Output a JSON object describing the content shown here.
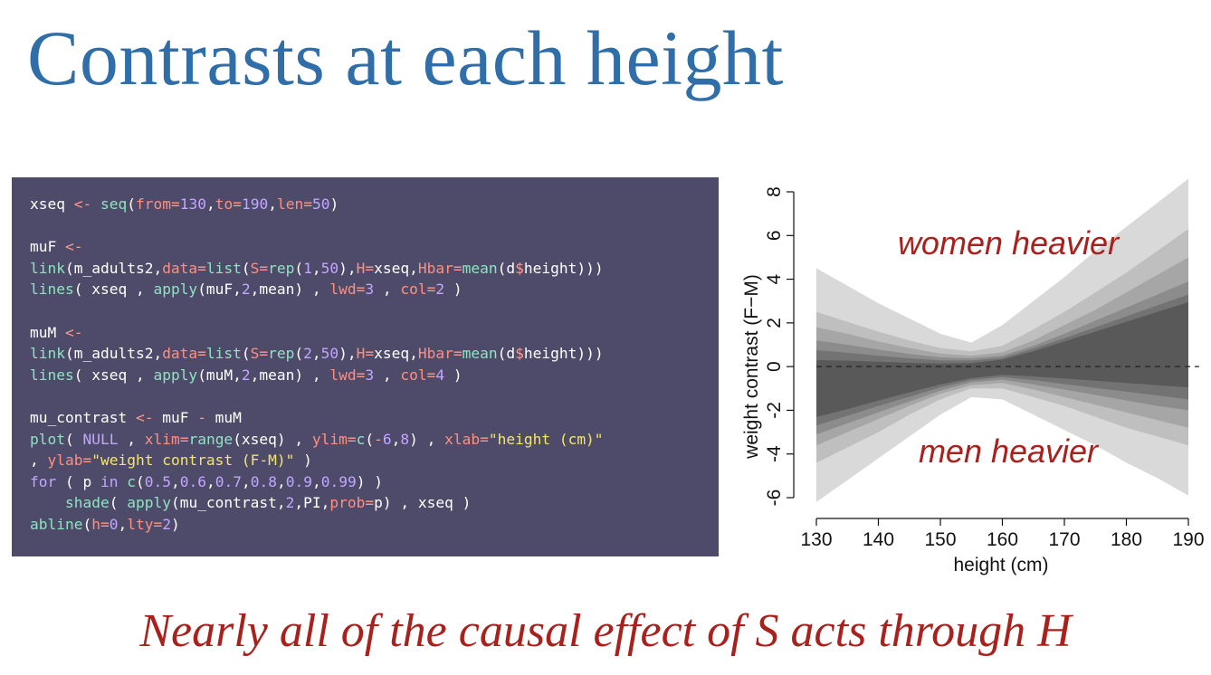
{
  "slide": {
    "title": "Contrasts at each height",
    "caption": "Nearly all of the causal effect of S acts through H"
  },
  "code": {
    "lines": [
      [
        {
          "t": "xseq "
        },
        {
          "t": "<-",
          "k": "op"
        },
        {
          "t": " "
        },
        {
          "t": "seq",
          "k": "fn"
        },
        {
          "t": "("
        },
        {
          "t": "from",
          "k": "arg"
        },
        {
          "t": "=",
          "k": "op"
        },
        {
          "t": "130",
          "k": "num"
        },
        {
          "t": ","
        },
        {
          "t": "to",
          "k": "arg"
        },
        {
          "t": "=",
          "k": "op"
        },
        {
          "t": "190",
          "k": "num"
        },
        {
          "t": ","
        },
        {
          "t": "len",
          "k": "arg"
        },
        {
          "t": "=",
          "k": "op"
        },
        {
          "t": "50",
          "k": "num"
        },
        {
          "t": ")"
        }
      ],
      [],
      [
        {
          "t": "muF "
        },
        {
          "t": "<-",
          "k": "op"
        }
      ],
      [
        {
          "t": "link",
          "k": "fn"
        },
        {
          "t": "(m_adults2,"
        },
        {
          "t": "data",
          "k": "arg"
        },
        {
          "t": "=",
          "k": "op"
        },
        {
          "t": "list",
          "k": "fn"
        },
        {
          "t": "("
        },
        {
          "t": "S",
          "k": "arg"
        },
        {
          "t": "=",
          "k": "op"
        },
        {
          "t": "rep",
          "k": "fn"
        },
        {
          "t": "("
        },
        {
          "t": "1",
          "k": "num"
        },
        {
          "t": ","
        },
        {
          "t": "50",
          "k": "num"
        },
        {
          "t": "),"
        },
        {
          "t": "H",
          "k": "arg"
        },
        {
          "t": "=",
          "k": "op"
        },
        {
          "t": "xseq,"
        },
        {
          "t": "Hbar",
          "k": "arg"
        },
        {
          "t": "=",
          "k": "op"
        },
        {
          "t": "mean",
          "k": "fn"
        },
        {
          "t": "(d"
        },
        {
          "t": "$",
          "k": "op"
        },
        {
          "t": "height)))"
        }
      ],
      [
        {
          "t": "lines",
          "k": "fn"
        },
        {
          "t": "( xseq , "
        },
        {
          "t": "apply",
          "k": "fn"
        },
        {
          "t": "(muF,"
        },
        {
          "t": "2",
          "k": "num"
        },
        {
          "t": ",mean) , "
        },
        {
          "t": "lwd",
          "k": "arg"
        },
        {
          "t": "=",
          "k": "op"
        },
        {
          "t": "3",
          "k": "num"
        },
        {
          "t": " , "
        },
        {
          "t": "col",
          "k": "arg"
        },
        {
          "t": "=",
          "k": "op"
        },
        {
          "t": "2",
          "k": "num"
        },
        {
          "t": " )"
        }
      ],
      [],
      [
        {
          "t": "muM "
        },
        {
          "t": "<-",
          "k": "op"
        }
      ],
      [
        {
          "t": "link",
          "k": "fn"
        },
        {
          "t": "(m_adults2,"
        },
        {
          "t": "data",
          "k": "arg"
        },
        {
          "t": "=",
          "k": "op"
        },
        {
          "t": "list",
          "k": "fn"
        },
        {
          "t": "("
        },
        {
          "t": "S",
          "k": "arg"
        },
        {
          "t": "=",
          "k": "op"
        },
        {
          "t": "rep",
          "k": "fn"
        },
        {
          "t": "("
        },
        {
          "t": "2",
          "k": "num"
        },
        {
          "t": ","
        },
        {
          "t": "50",
          "k": "num"
        },
        {
          "t": "),"
        },
        {
          "t": "H",
          "k": "arg"
        },
        {
          "t": "=",
          "k": "op"
        },
        {
          "t": "xseq,"
        },
        {
          "t": "Hbar",
          "k": "arg"
        },
        {
          "t": "=",
          "k": "op"
        },
        {
          "t": "mean",
          "k": "fn"
        },
        {
          "t": "(d"
        },
        {
          "t": "$",
          "k": "op"
        },
        {
          "t": "height)))"
        }
      ],
      [
        {
          "t": "lines",
          "k": "fn"
        },
        {
          "t": "( xseq , "
        },
        {
          "t": "apply",
          "k": "fn"
        },
        {
          "t": "(muM,"
        },
        {
          "t": "2",
          "k": "num"
        },
        {
          "t": ",mean) , "
        },
        {
          "t": "lwd",
          "k": "arg"
        },
        {
          "t": "=",
          "k": "op"
        },
        {
          "t": "3",
          "k": "num"
        },
        {
          "t": " , "
        },
        {
          "t": "col",
          "k": "arg"
        },
        {
          "t": "=",
          "k": "op"
        },
        {
          "t": "4",
          "k": "num"
        },
        {
          "t": " )"
        }
      ],
      [],
      [
        {
          "t": "mu_contrast "
        },
        {
          "t": "<-",
          "k": "op"
        },
        {
          "t": " muF "
        },
        {
          "t": "-",
          "k": "op"
        },
        {
          "t": " muM"
        }
      ],
      [
        {
          "t": "plot",
          "k": "fn"
        },
        {
          "t": "( "
        },
        {
          "t": "NULL",
          "k": "kw"
        },
        {
          "t": " , "
        },
        {
          "t": "xlim",
          "k": "arg"
        },
        {
          "t": "=",
          "k": "op"
        },
        {
          "t": "range",
          "k": "fn"
        },
        {
          "t": "(xseq) , "
        },
        {
          "t": "ylim",
          "k": "arg"
        },
        {
          "t": "=",
          "k": "op"
        },
        {
          "t": "c",
          "k": "fn"
        },
        {
          "t": "("
        },
        {
          "t": "-",
          "k": "op"
        },
        {
          "t": "6",
          "k": "num"
        },
        {
          "t": ","
        },
        {
          "t": "8",
          "k": "num"
        },
        {
          "t": ") , "
        },
        {
          "t": "xlab",
          "k": "arg"
        },
        {
          "t": "=",
          "k": "op"
        },
        {
          "t": "\"height (cm)\"",
          "k": "str"
        }
      ],
      [
        {
          "t": ", "
        },
        {
          "t": "ylab",
          "k": "arg"
        },
        {
          "t": "=",
          "k": "op"
        },
        {
          "t": "\"weight contrast (F-M)\"",
          "k": "str"
        },
        {
          "t": " )"
        }
      ],
      [
        {
          "t": "for",
          "k": "kw"
        },
        {
          "t": " ( p "
        },
        {
          "t": "in",
          "k": "kw"
        },
        {
          "t": " "
        },
        {
          "t": "c",
          "k": "fn"
        },
        {
          "t": "("
        },
        {
          "t": "0.5",
          "k": "num"
        },
        {
          "t": ","
        },
        {
          "t": "0.6",
          "k": "num"
        },
        {
          "t": ","
        },
        {
          "t": "0.7",
          "k": "num"
        },
        {
          "t": ","
        },
        {
          "t": "0.8",
          "k": "num"
        },
        {
          "t": ","
        },
        {
          "t": "0.9",
          "k": "num"
        },
        {
          "t": ","
        },
        {
          "t": "0.99",
          "k": "num"
        },
        {
          "t": ") )"
        }
      ],
      [
        {
          "t": "    "
        },
        {
          "t": "shade",
          "k": "fn"
        },
        {
          "t": "( "
        },
        {
          "t": "apply",
          "k": "fn"
        },
        {
          "t": "(mu_contrast,"
        },
        {
          "t": "2",
          "k": "num"
        },
        {
          "t": ",PI,"
        },
        {
          "t": "prob",
          "k": "arg"
        },
        {
          "t": "=",
          "k": "op"
        },
        {
          "t": "p) , xseq )"
        }
      ],
      [
        {
          "t": "abline",
          "k": "fn"
        },
        {
          "t": "("
        },
        {
          "t": "h",
          "k": "arg"
        },
        {
          "t": "=",
          "k": "op"
        },
        {
          "t": "0",
          "k": "num"
        },
        {
          "t": ","
        },
        {
          "t": "lty",
          "k": "arg"
        },
        {
          "t": "=",
          "k": "op"
        },
        {
          "t": "2",
          "k": "num"
        },
        {
          "t": ")"
        }
      ]
    ]
  },
  "chart_data": {
    "type": "area",
    "title": "",
    "xlabel": "height (cm)",
    "ylabel": "weight contrast (F−M)",
    "xlim": [
      130,
      190
    ],
    "ylim": [
      -6,
      8
    ],
    "xticks": [
      "130",
      "140",
      "150",
      "160",
      "170",
      "180",
      "190"
    ],
    "yticks": [
      "-6",
      "-4",
      "-2",
      "0",
      "2",
      "4",
      "6",
      "8"
    ],
    "reference_line": {
      "y": 0,
      "style": "dashed"
    },
    "annotations": [
      "women heavier",
      "men heavier"
    ],
    "x": [
      130,
      135,
      140,
      145,
      150,
      155,
      160,
      165,
      170,
      175,
      180,
      185,
      190
    ],
    "series": [
      {
        "prob": 0.99,
        "upper": [
          4.5,
          3.7,
          2.9,
          2.2,
          1.5,
          1.1,
          1.9,
          3.0,
          4.1,
          5.3,
          6.4,
          7.5,
          8.6
        ],
        "lower": [
          -6.2,
          -5.2,
          -4.2,
          -3.2,
          -2.2,
          -1.4,
          -1.5,
          -2.2,
          -2.9,
          -3.6,
          -4.4,
          -5.1,
          -5.9
        ]
      },
      {
        "prob": 0.9,
        "upper": [
          2.5,
          2.05,
          1.6,
          1.2,
          0.85,
          0.7,
          0.95,
          1.7,
          2.5,
          3.4,
          4.3,
          5.3,
          6.3
        ],
        "lower": [
          -4.4,
          -3.7,
          -3.0,
          -2.2,
          -1.5,
          -1.0,
          -1.0,
          -1.4,
          -1.8,
          -2.3,
          -2.8,
          -3.2,
          -3.6
        ]
      },
      {
        "prob": 0.8,
        "upper": [
          1.8,
          1.5,
          1.15,
          0.85,
          0.6,
          0.5,
          0.65,
          1.2,
          1.9,
          2.6,
          3.4,
          4.2,
          5.0
        ],
        "lower": [
          -3.6,
          -3.0,
          -2.4,
          -1.8,
          -1.25,
          -0.85,
          -0.75,
          -1.05,
          -1.4,
          -1.75,
          -2.1,
          -2.45,
          -2.8
        ]
      },
      {
        "prob": 0.7,
        "upper": [
          1.2,
          1.0,
          0.78,
          0.58,
          0.42,
          0.38,
          0.5,
          0.95,
          1.5,
          2.1,
          2.7,
          3.3,
          3.9
        ],
        "lower": [
          -3.1,
          -2.6,
          -2.1,
          -1.6,
          -1.1,
          -0.72,
          -0.6,
          -0.82,
          -1.05,
          -1.3,
          -1.55,
          -1.8,
          -2.0
        ]
      },
      {
        "prob": 0.6,
        "upper": [
          0.75,
          0.63,
          0.5,
          0.38,
          0.28,
          0.28,
          0.4,
          0.82,
          1.3,
          1.8,
          2.3,
          2.8,
          3.3
        ],
        "lower": [
          -2.7,
          -2.25,
          -1.8,
          -1.38,
          -0.95,
          -0.62,
          -0.48,
          -0.62,
          -0.8,
          -0.98,
          -1.15,
          -1.32,
          -1.5
        ]
      },
      {
        "prob": 0.5,
        "upper": [
          0.3,
          0.27,
          0.22,
          0.17,
          0.14,
          0.16,
          0.32,
          0.7,
          1.15,
          1.6,
          2.05,
          2.5,
          2.95
        ],
        "lower": [
          -2.3,
          -1.95,
          -1.55,
          -1.18,
          -0.82,
          -0.53,
          -0.38,
          -0.45,
          -0.55,
          -0.65,
          -0.75,
          -0.85,
          -0.95
        ]
      }
    ],
    "colors": {
      "bands": [
        "#d9d9d9",
        "#bfbfbf",
        "#a6a6a6",
        "#8c8c8c",
        "#737373",
        "#595959"
      ],
      "annotation": "#a8211c"
    }
  }
}
